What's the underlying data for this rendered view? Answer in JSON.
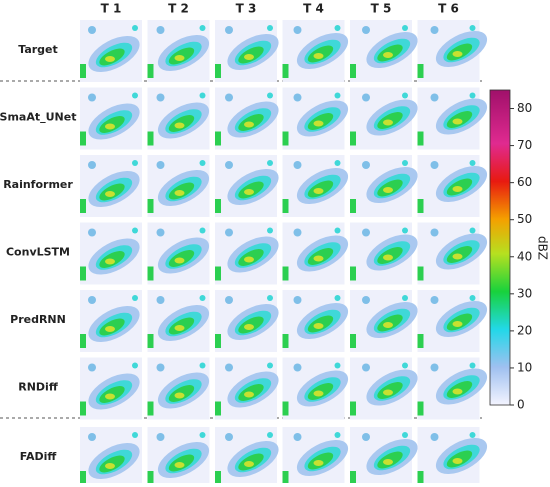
{
  "columns": [
    "T 1",
    "T 2",
    "T 3",
    "T 4",
    "T 5",
    "T 6"
  ],
  "rows": [
    "Target",
    "SmaAt_UNet",
    "Rainformer",
    "ConvLSTM",
    "PredRNN",
    "RNDiff",
    "FADiff"
  ],
  "colorbar": {
    "label": "dBZ",
    "lim": [
      0,
      85
    ],
    "ticks": [
      0,
      10,
      20,
      30,
      40,
      50,
      60,
      70,
      80
    ]
  }
}
